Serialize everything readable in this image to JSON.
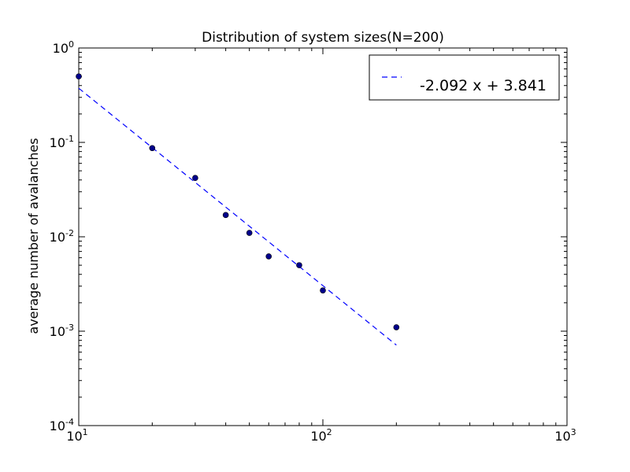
{
  "chart_data": {
    "type": "scatter",
    "title": "Distribution of system sizes(N=200)",
    "xlabel": "",
    "ylabel": "average number of avalanches",
    "xscale": "log",
    "yscale": "log",
    "xlim": [
      10,
      1000
    ],
    "ylim": [
      0.0001,
      1
    ],
    "grid": false,
    "x_ticks": [
      {
        "value": 10,
        "base": "10",
        "exp": "1"
      },
      {
        "value": 100,
        "base": "10",
        "exp": "2"
      },
      {
        "value": 1000,
        "base": "10",
        "exp": "3"
      }
    ],
    "y_ticks": [
      {
        "value": 1,
        "base": "10",
        "exp": "0"
      },
      {
        "value": 0.1,
        "base": "10",
        "exp": "-1"
      },
      {
        "value": 0.01,
        "base": "10",
        "exp": "-2"
      },
      {
        "value": 0.001,
        "base": "10",
        "exp": "-3"
      },
      {
        "value": 0.0001,
        "base": "10",
        "exp": "-4"
      }
    ],
    "series": [
      {
        "kind": "scatter",
        "color": "#00008b",
        "x": [
          10,
          20,
          30,
          40,
          50,
          60,
          80,
          100,
          200
        ],
        "y": [
          0.5,
          0.087,
          0.042,
          0.017,
          0.011,
          0.0062,
          0.005,
          0.0027,
          0.0011
        ]
      },
      {
        "kind": "fit-line",
        "name": "-2.092 x + 3.841",
        "color": "#0000ff",
        "style": "dashed",
        "x": [
          10,
          200
        ],
        "y": [
          0.3746,
          0.000713
        ]
      }
    ],
    "legend": {
      "position": "top-right",
      "entries": [
        "-2.092 x + 3.841"
      ]
    }
  }
}
